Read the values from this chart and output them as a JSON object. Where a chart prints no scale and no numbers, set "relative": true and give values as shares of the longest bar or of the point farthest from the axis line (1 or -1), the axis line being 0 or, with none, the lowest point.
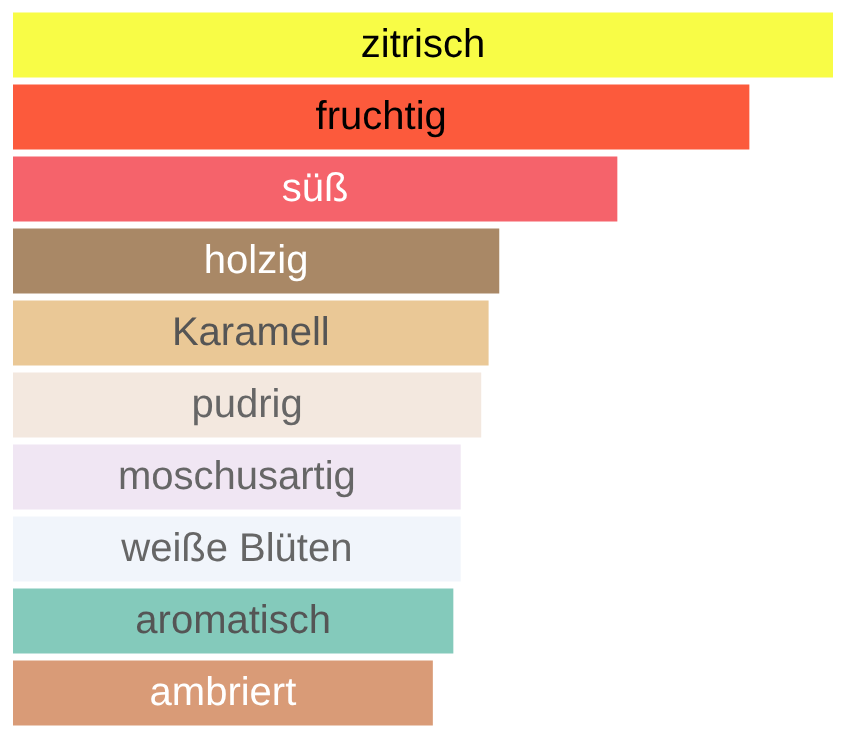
{
  "chart_data": {
    "type": "bar",
    "orientation": "horizontal",
    "relative": true,
    "categories": [
      "zitrisch",
      "fruchtig",
      "süß",
      "holzig",
      "Karamell",
      "pudrig",
      "moschusartig",
      "weiße Blüten",
      "aromatisch",
      "ambriert"
    ],
    "values": [
      1,
      0.898,
      0.737,
      0.593,
      0.58,
      0.571,
      0.546,
      0.546,
      0.537,
      0.512
    ],
    "colors": [
      "#f8fc46",
      "#fc5a3c",
      "#f5636b",
      "#a98866",
      "#eac896",
      "#f3e8df",
      "#f0e6f3",
      "#f1f5fb",
      "#84cabb",
      "#d99b77"
    ]
  }
}
